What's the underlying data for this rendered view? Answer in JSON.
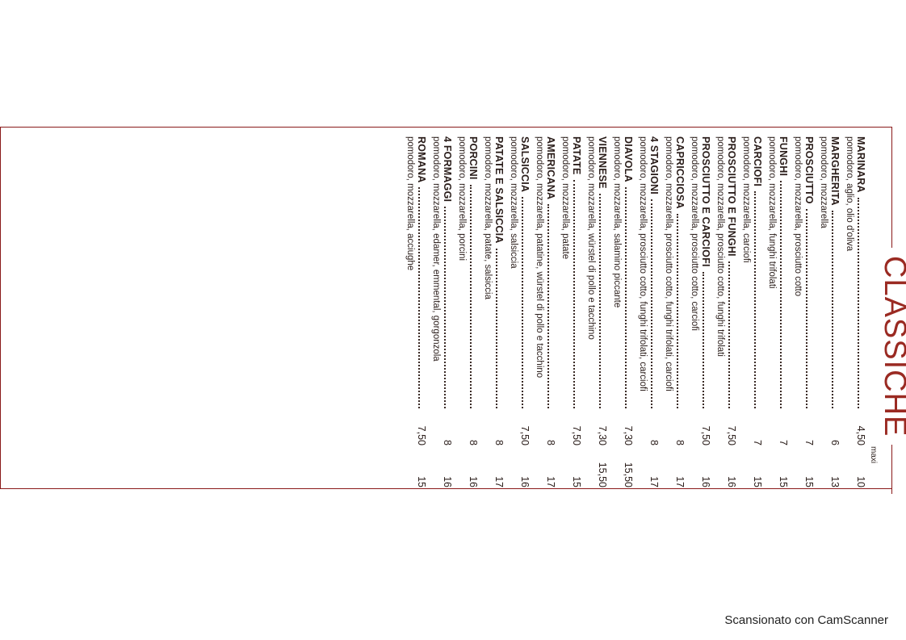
{
  "menu": {
    "title": "CLASSICHE",
    "maxi_label": "maxi",
    "items": [
      {
        "name": "MARINARA",
        "desc": "pomodoro, aglio, olio d'oliva",
        "price": "4,50",
        "maxi": "10"
      },
      {
        "name": "MARGHERITA",
        "desc": "pomodoro, mozzarella",
        "price": "6",
        "maxi": "13"
      },
      {
        "name": "PROSCIUTTO",
        "desc": "pomodoro, mozzarella, prosciutto cotto",
        "price": "7",
        "maxi": "15"
      },
      {
        "name": "FUNGHI",
        "desc": "pomodoro, mozzarella, funghi trifolati",
        "price": "7",
        "maxi": "15"
      },
      {
        "name": "CARCIOFI",
        "desc": "pomodoro, mozzarella, carciofi",
        "price": "7",
        "maxi": "15"
      },
      {
        "name": "PROSCIUTTO E FUNGHI",
        "desc": "pomodoro, mozzarella, prosciutto cotto, funghi trifolati",
        "price": "7,50",
        "maxi": "16"
      },
      {
        "name": "PROSCIUTTO E CARCIOFI",
        "desc": "pomodoro, mozzarella, prosciutto cotto, carciofi",
        "price": "7,50",
        "maxi": "16"
      },
      {
        "name": "CAPRICCIOSA",
        "desc": "pomodoro, mozzarella, prosciutto cotto, funghi trifolati, carciofi",
        "price": "8",
        "maxi": "17"
      },
      {
        "name": "4 STAGIONI",
        "desc": "pomodoro, mozzarella, prosciutto cotto, funghi trifolati, carciofi",
        "price": "8",
        "maxi": "17"
      },
      {
        "name": "DIAVOLA",
        "desc": "pomodoro, mozzarella, salamino piccante",
        "price": "7,30",
        "maxi": "15,50"
      },
      {
        "name": "VIENNESE",
        "desc": "pomodoro, mozzarella, würstel di pollo e tacchino",
        "price": "7,30",
        "maxi": "15,50"
      },
      {
        "name": "PATATE",
        "desc": "pomodoro, mozzarella, patate",
        "price": "7,50",
        "maxi": "15"
      },
      {
        "name": "AMERICANA",
        "desc": "pomodoro, mozzarella, patatine, würstel di pollo e tacchino",
        "price": "8",
        "maxi": "17"
      },
      {
        "name": "SALSICCIA",
        "desc": "pomodoro, mozzarella, salsiccia",
        "price": "7,50",
        "maxi": "16"
      },
      {
        "name": "PATATE E SALSICCIA",
        "desc": "pomodoro, mozzarella, patate, salsiccia",
        "price": "8",
        "maxi": "17"
      },
      {
        "name": "PORCINI",
        "desc": "pomodoro, mozzarella, porcini",
        "price": "8",
        "maxi": "16"
      },
      {
        "name": "4 FORMAGGI",
        "desc": "pomodoro, mozzarella, edamer, emmental, gorgonzola",
        "price": "8",
        "maxi": "16"
      },
      {
        "name": "ROMANA",
        "desc": "pomodoro, mozzarella, acciughe",
        "price": "7,50",
        "maxi": "15"
      }
    ]
  },
  "footer": {
    "scanner_note": "Scansionato con CamScanner"
  },
  "colors": {
    "accent": "#9a2a22",
    "text": "#2a1d1a"
  }
}
